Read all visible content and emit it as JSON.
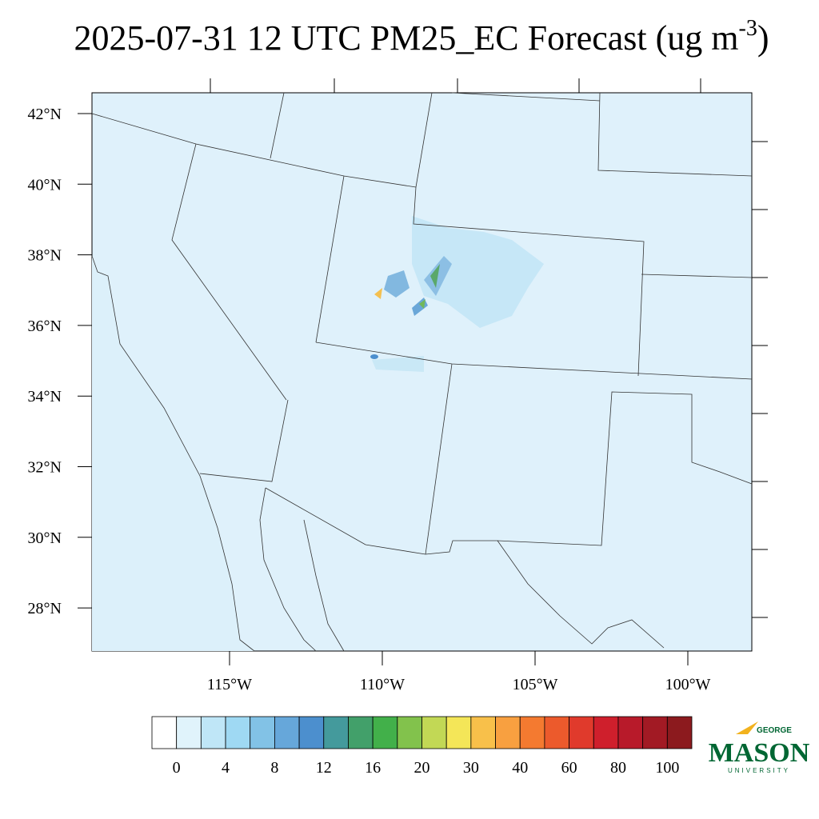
{
  "title": {
    "main": "2025-07-31 12 UTC PM25_EC Forecast (ug m",
    "superscript": "-3",
    "end": ")"
  },
  "lat_labels": [
    "42°N",
    "40°N",
    "38°N",
    "36°N",
    "34°N",
    "32°N",
    "30°N",
    "28°N"
  ],
  "lon_labels": [
    "115°W",
    "110°W",
    "105°W",
    "100°W"
  ],
  "colorbar": {
    "colors": [
      "#ffffff",
      "#e0f3fb",
      "#bfe6f7",
      "#9fd9f3",
      "#82c2e6",
      "#66a7da",
      "#4c8fce",
      "#449a9c",
      "#42a06a",
      "#42b04a",
      "#82c24c",
      "#c2d855",
      "#f4e658",
      "#f8c04a",
      "#f8a040",
      "#f47a30",
      "#ec5a2c",
      "#e03a2c",
      "#cf1f2c",
      "#b81a2a",
      "#a21a24",
      "#8c1a1e"
    ],
    "labels": [
      "0",
      "4",
      "8",
      "12",
      "16",
      "20",
      "30",
      "40",
      "60",
      "80",
      "100"
    ]
  },
  "logo": {
    "top": "GEORGE",
    "main": "MASON",
    "bottom": "UNIVERSITY"
  }
}
